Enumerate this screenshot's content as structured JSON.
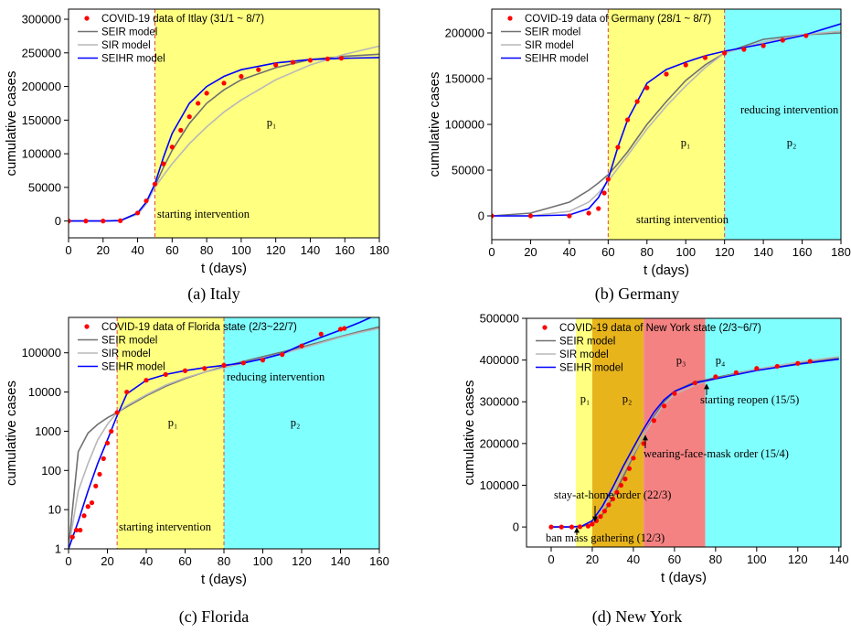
{
  "chart_data": [
    {
      "type": "line",
      "caption": "(a) Italy",
      "xlabel": "t (days)",
      "ylabel": "cumulative cases",
      "xlim": [
        0,
        180
      ],
      "xticks": [
        0,
        20,
        40,
        60,
        80,
        100,
        120,
        140,
        160,
        180
      ],
      "ylim": [
        -25000,
        315000
      ],
      "yticks": [
        0,
        50000,
        100000,
        150000,
        200000,
        250000,
        300000
      ],
      "dashed_boundaries": true,
      "regions": [
        {
          "from": 50,
          "to": 180,
          "color": "#ffff80",
          "label": "p₁"
        }
      ],
      "annotations": [
        "starting intervention"
      ],
      "series": [
        {
          "name": "COVID-19 data of Itlay (31/1 ~ 8/7)",
          "type": "scatter",
          "color": "#ff0000",
          "x": [
            0,
            10,
            20,
            30,
            40,
            45,
            50,
            55,
            60,
            65,
            70,
            75,
            80,
            90,
            100,
            110,
            120,
            130,
            140,
            150,
            158
          ],
          "values": [
            0,
            0,
            0,
            500,
            12000,
            30000,
            55000,
            85000,
            110000,
            135000,
            155000,
            175000,
            190000,
            205000,
            215000,
            225000,
            232000,
            236000,
            239000,
            241000,
            242000
          ]
        },
        {
          "name": "SEIR model",
          "type": "line",
          "color": "#707070",
          "x": [
            0,
            20,
            30,
            40,
            45,
            50,
            55,
            60,
            70,
            80,
            90,
            100,
            120,
            140,
            160,
            180
          ],
          "values": [
            0,
            0,
            1000,
            12000,
            28000,
            52000,
            80000,
            105000,
            145000,
            175000,
            195000,
            210000,
            228000,
            240000,
            245000,
            248000
          ]
        },
        {
          "name": "SIR model",
          "type": "line",
          "color": "#b8b8b8",
          "x": [
            0,
            20,
            30,
            40,
            45,
            50,
            55,
            60,
            70,
            80,
            90,
            100,
            120,
            140,
            160,
            180
          ],
          "values": [
            0,
            0,
            1000,
            10000,
            25000,
            50000,
            68000,
            85000,
            115000,
            140000,
            162000,
            180000,
            210000,
            232000,
            248000,
            260000
          ]
        },
        {
          "name": "SEIHR model",
          "type": "line",
          "color": "#0000ff",
          "x": [
            0,
            20,
            30,
            40,
            45,
            50,
            55,
            60,
            70,
            80,
            90,
            100,
            120,
            140,
            160,
            180
          ],
          "values": [
            0,
            0,
            500,
            12000,
            28000,
            55000,
            95000,
            130000,
            175000,
            200000,
            215000,
            225000,
            235000,
            240000,
            242000,
            243000
          ]
        }
      ]
    },
    {
      "type": "line",
      "caption": "(b) Germany",
      "xlabel": "t (days)",
      "ylabel": "cumulative cases",
      "xlim": [
        0,
        180
      ],
      "xticks": [
        0,
        20,
        40,
        60,
        80,
        100,
        120,
        140,
        160,
        180
      ],
      "ylim": [
        -26000,
        226000
      ],
      "yticks": [
        0,
        50000,
        100000,
        150000,
        200000
      ],
      "dashed_boundaries": true,
      "regions": [
        {
          "from": 60,
          "to": 120,
          "color": "#ffff80",
          "label": "p₁"
        },
        {
          "from": 120,
          "to": 180,
          "color": "#80ffff",
          "label": "p₂"
        }
      ],
      "annotations": [
        "starting intervention",
        "reducing intervention"
      ],
      "series": [
        {
          "name": "COVID-19 data of Germany (28/1 ~ 8/7)",
          "type": "scatter",
          "color": "#ff0000",
          "x": [
            0,
            20,
            40,
            50,
            55,
            58,
            60,
            65,
            70,
            75,
            80,
            90,
            100,
            110,
            120,
            130,
            140,
            150,
            162
          ],
          "values": [
            0,
            0,
            0,
            3000,
            8000,
            25000,
            40000,
            75000,
            105000,
            125000,
            140000,
            155000,
            165000,
            173000,
            178000,
            182000,
            186000,
            192000,
            197000
          ]
        },
        {
          "name": "SEIR model",
          "type": "line",
          "color": "#707070",
          "x": [
            0,
            20,
            40,
            50,
            55,
            60,
            65,
            70,
            80,
            90,
            100,
            110,
            120,
            140,
            160,
            180
          ],
          "values": [
            0,
            3000,
            15000,
            28000,
            36000,
            45000,
            57000,
            70000,
            100000,
            125000,
            148000,
            165000,
            178000,
            193000,
            198000,
            200000
          ]
        },
        {
          "name": "SIR model",
          "type": "line",
          "color": "#b8b8b8",
          "x": [
            0,
            20,
            40,
            50,
            55,
            60,
            65,
            70,
            80,
            90,
            100,
            110,
            120,
            140,
            160,
            180
          ],
          "values": [
            0,
            0,
            5000,
            15000,
            25000,
            38000,
            52000,
            66000,
            95000,
            120000,
            142000,
            162000,
            178000,
            190000,
            198000,
            202000
          ]
        },
        {
          "name": "SEIHR model",
          "type": "line",
          "color": "#0000ff",
          "x": [
            0,
            20,
            40,
            50,
            55,
            60,
            65,
            70,
            80,
            90,
            100,
            110,
            120,
            140,
            160,
            180
          ],
          "values": [
            0,
            0,
            1000,
            8000,
            20000,
            40000,
            75000,
            105000,
            145000,
            160000,
            168000,
            175000,
            180000,
            188000,
            197000,
            210000
          ]
        }
      ]
    },
    {
      "type": "line",
      "caption": "(c) Florida",
      "xlabel": "t (days)",
      "ylabel": "cumulative cases",
      "xlim": [
        0,
        160
      ],
      "xticks": [
        0,
        20,
        40,
        60,
        80,
        100,
        120,
        140,
        160
      ],
      "ylim": [
        1,
        800000
      ],
      "yticks": [
        1,
        10,
        100,
        1000,
        10000,
        100000
      ],
      "log_y": true,
      "dashed_boundaries": true,
      "regions": [
        {
          "from": 25,
          "to": 80,
          "color": "#ffff80",
          "label": "p₁"
        },
        {
          "from": 80,
          "to": 160,
          "color": "#80ffff",
          "label": "p₂"
        }
      ],
      "annotations": [
        "reducing intervention",
        "starting intervention"
      ],
      "series": [
        {
          "name": "COVID-19 data of Florida state (2/3~22/7)",
          "type": "scatter",
          "color": "#ff0000",
          "x": [
            2,
            4,
            6,
            8,
            10,
            12,
            14,
            16,
            18,
            20,
            22,
            25,
            30,
            40,
            50,
            60,
            70,
            80,
            90,
            100,
            110,
            120,
            130,
            140,
            142
          ],
          "values": [
            2,
            3,
            3,
            7,
            12,
            15,
            40,
            80,
            200,
            500,
            1000,
            3000,
            10000,
            20000,
            28000,
            35000,
            40000,
            48000,
            55000,
            65000,
            90000,
            150000,
            300000,
            400000,
            420000
          ]
        },
        {
          "name": "SEIR model",
          "type": "line",
          "color": "#707070",
          "x": [
            0,
            5,
            10,
            15,
            20,
            25,
            30,
            40,
            50,
            60,
            70,
            80,
            90,
            100,
            110,
            120,
            130,
            140,
            150,
            160
          ],
          "values": [
            1,
            300,
            900,
            1500,
            2200,
            3000,
            4200,
            8000,
            14000,
            22000,
            32000,
            45000,
            60000,
            80000,
            105000,
            140000,
            190000,
            260000,
            350000,
            460000
          ]
        },
        {
          "name": "SIR model",
          "type": "line",
          "color": "#b8b8b8",
          "x": [
            0,
            5,
            10,
            15,
            20,
            25,
            30,
            40,
            50,
            60,
            70,
            80,
            90,
            100,
            110,
            120,
            130,
            140,
            150,
            160
          ],
          "values": [
            1,
            30,
            150,
            600,
            1500,
            3000,
            4500,
            8500,
            15000,
            23000,
            32000,
            42000,
            55000,
            72000,
            95000,
            130000,
            180000,
            250000,
            330000,
            420000
          ]
        },
        {
          "name": "SEIHR model",
          "type": "line",
          "color": "#0000ff",
          "x": [
            0,
            5,
            10,
            15,
            20,
            25,
            30,
            40,
            50,
            60,
            70,
            80,
            90,
            100,
            110,
            120,
            130,
            140,
            150,
            160
          ],
          "values": [
            1,
            5,
            30,
            150,
            600,
            2500,
            9000,
            20000,
            28000,
            35000,
            42000,
            48000,
            55000,
            70000,
            95000,
            160000,
            250000,
            380000,
            600000,
            1000000
          ]
        }
      ]
    },
    {
      "type": "line",
      "caption": "(d) New York",
      "xlabel": "t (days)",
      "ylabel": "cumulative cases",
      "xlim": [
        -12,
        141
      ],
      "xticks": [
        0,
        20,
        40,
        60,
        80,
        100,
        120,
        140
      ],
      "ylim": [
        -48000,
        500000
      ],
      "yticks": [
        0,
        100000,
        200000,
        300000,
        400000,
        500000
      ],
      "dashed_boundaries": false,
      "regions": [
        {
          "from": 12,
          "to": 20,
          "color": "#ffff80",
          "label": "p₁"
        },
        {
          "from": 20,
          "to": 45,
          "color": "#e8b41c",
          "label": "p₂"
        },
        {
          "from": 45,
          "to": 75,
          "color": "#f58282",
          "label": "p₃"
        },
        {
          "from": 75,
          "to": 141,
          "color": "#80ffff",
          "label": "p₄"
        }
      ],
      "annotations": [
        "stay-at-home order (22/3)",
        "ban mass gathering (12/3)",
        "wearing-face-mask order (15/4)",
        "starting reopen (15/5)"
      ],
      "series": [
        {
          "name": "COVID-19 data of New York state (2/3~6/7)",
          "type": "scatter",
          "color": "#ff0000",
          "x": [
            0,
            5,
            10,
            14,
            18,
            20,
            22,
            24,
            26,
            28,
            30,
            32,
            34,
            36,
            38,
            40,
            45,
            50,
            55,
            60,
            70,
            80,
            90,
            100,
            110,
            120,
            126
          ],
          "values": [
            0,
            0,
            0,
            500,
            2000,
            7000,
            15000,
            25000,
            38000,
            53000,
            67000,
            83000,
            100000,
            115000,
            140000,
            165000,
            200000,
            255000,
            290000,
            320000,
            345000,
            360000,
            370000,
            380000,
            385000,
            392000,
            397000
          ]
        },
        {
          "name": "SEIR model",
          "type": "line",
          "color": "#707070",
          "x": [
            0,
            10,
            15,
            20,
            25,
            30,
            35,
            40,
            45,
            50,
            55,
            60,
            70,
            75,
            80,
            100,
            120,
            140
          ],
          "values": [
            0,
            0,
            1000,
            8000,
            30000,
            70000,
            120000,
            170000,
            220000,
            265000,
            300000,
            325000,
            348000,
            352000,
            358000,
            378000,
            393000,
            405000
          ]
        },
        {
          "name": "SIR model",
          "type": "line",
          "color": "#b8b8b8",
          "x": [
            0,
            10,
            15,
            20,
            25,
            30,
            35,
            40,
            45,
            50,
            55,
            60,
            70,
            75,
            80,
            100,
            120,
            140
          ],
          "values": [
            0,
            0,
            3000,
            15000,
            45000,
            85000,
            130000,
            175000,
            220000,
            260000,
            295000,
            318000,
            340000,
            348000,
            355000,
            378000,
            395000,
            408000
          ]
        },
        {
          "name": "SEIHR model",
          "type": "line",
          "color": "#0000ff",
          "x": [
            0,
            10,
            15,
            20,
            25,
            30,
            35,
            40,
            45,
            50,
            55,
            60,
            70,
            75,
            80,
            100,
            120,
            140
          ],
          "values": [
            0,
            0,
            2000,
            15000,
            50000,
            95000,
            145000,
            190000,
            235000,
            275000,
            305000,
            325000,
            345000,
            350000,
            355000,
            375000,
            390000,
            402000
          ]
        }
      ]
    }
  ]
}
